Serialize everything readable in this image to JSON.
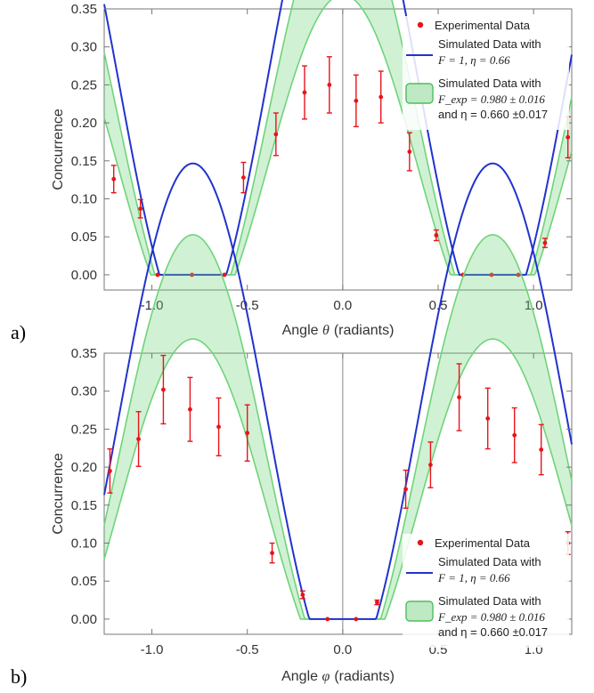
{
  "chart_data": [
    {
      "type": "scatter",
      "panel_label": "a)",
      "xlabel_prefix": "Angle",
      "xlabel_symbol": "θ",
      "xlabel_suffix": "(radiants)",
      "ylabel": "Concurrence",
      "xlim": [
        -1.25,
        1.2
      ],
      "ylim": [
        -0.02,
        0.35
      ],
      "x_ticks": [
        "-1.0",
        "-0.5",
        "0.0",
        "0.5",
        "1.0"
      ],
      "x_tick_values": [
        -1.0,
        -0.5,
        0.0,
        0.5,
        1.0
      ],
      "y_ticks": [
        "0.00",
        "0.05",
        "0.10",
        "0.15",
        "0.20",
        "0.25",
        "0.30",
        "0.35"
      ],
      "y_tick_values": [
        0.0,
        0.05,
        0.1,
        0.15,
        0.2,
        0.25,
        0.3,
        0.35
      ],
      "grid": false,
      "legend_placement": "top-right",
      "model": {
        "mode": "theta",
        "F": 1,
        "eta": 0.66,
        "F_exp": 0.98,
        "F_exp_err": 0.016,
        "eta_err": 0.017
      },
      "series": [
        {
          "name": "Experimental Data",
          "type": "errorbar",
          "color": "#e8141b",
          "x": [
            -1.2,
            -1.06,
            -0.97,
            -0.79,
            -0.62,
            -0.52,
            -0.35,
            -0.2,
            -0.07,
            0.07,
            0.2,
            0.35,
            0.49,
            0.63,
            0.78,
            0.92,
            1.06,
            1.18
          ],
          "y": [
            0.126,
            0.087,
            0.0,
            0.0,
            0.0,
            0.128,
            0.185,
            0.24,
            0.25,
            0.229,
            0.234,
            0.162,
            0.052,
            0.0,
            0.0,
            0.0,
            0.042,
            0.181
          ],
          "err": [
            0.018,
            0.012,
            0.0,
            0.0,
            0.0,
            0.02,
            0.028,
            0.035,
            0.037,
            0.034,
            0.034,
            0.025,
            0.007,
            0.0,
            0.0,
            0.0,
            0.006,
            0.027
          ]
        },
        {
          "name": "Simulated Data with",
          "type": "line",
          "color": "#2233cc"
        },
        {
          "name": "Simulated Data with",
          "type": "band",
          "color": "#6fd47a"
        }
      ],
      "legend": {
        "experimental": "Experimental Data",
        "sim_title": "Simulated Data with",
        "sim_params": "F = 1, η = 0.66",
        "band_title": "Simulated Data with",
        "band_params": "F_exp = 0.980 ± 0.016",
        "band_params_2": "and η = 0.660 ±0.017"
      }
    },
    {
      "type": "scatter",
      "panel_label": "b)",
      "xlabel_prefix": "Angle",
      "xlabel_symbol": "φ",
      "xlabel_suffix": "(radiants)",
      "ylabel": "Concurrence",
      "xlim": [
        -1.25,
        1.2
      ],
      "ylim": [
        -0.02,
        0.35
      ],
      "x_ticks": [
        "-1.0",
        "-0.5",
        "0.0",
        "0.5",
        "1.0"
      ],
      "x_tick_values": [
        -1.0,
        -0.5,
        0.0,
        0.5,
        1.0
      ],
      "y_ticks": [
        "0.00",
        "0.05",
        "0.10",
        "0.15",
        "0.20",
        "0.25",
        "0.30",
        "0.35"
      ],
      "y_tick_values": [
        0.0,
        0.05,
        0.1,
        0.15,
        0.2,
        0.25,
        0.3,
        0.35
      ],
      "grid": false,
      "legend_placement": "bottom-right",
      "model": {
        "mode": "phi",
        "F": 1,
        "eta": 0.66,
        "F_exp": 0.98,
        "F_exp_err": 0.016,
        "eta_err": 0.017
      },
      "series": [
        {
          "name": "Experimental Data",
          "type": "errorbar",
          "color": "#e8141b",
          "x": [
            -1.22,
            -1.07,
            -0.94,
            -0.8,
            -0.65,
            -0.5,
            -0.37,
            -0.21,
            -0.08,
            0.07,
            0.18,
            0.33,
            0.46,
            0.61,
            0.76,
            0.9,
            1.04,
            1.18
          ],
          "y": [
            0.195,
            0.237,
            0.302,
            0.276,
            0.253,
            0.245,
            0.087,
            0.032,
            0.0,
            0.0,
            0.022,
            0.171,
            0.203,
            0.292,
            0.264,
            0.242,
            0.223,
            0.1
          ],
          "err": [
            0.029,
            0.036,
            0.045,
            0.042,
            0.038,
            0.037,
            0.013,
            0.005,
            0.0,
            0.0,
            0.003,
            0.025,
            0.03,
            0.044,
            0.04,
            0.036,
            0.033,
            0.015
          ]
        },
        {
          "name": "Simulated Data with",
          "type": "line",
          "color": "#2233cc"
        },
        {
          "name": "Simulated Data with",
          "type": "band",
          "color": "#6fd47a"
        }
      ],
      "legend": {
        "experimental": "Experimental Data",
        "sim_title": "Simulated Data with",
        "sim_params": "F = 1, η = 0.66",
        "band_title": "Simulated Data with",
        "band_params": "F_exp = 0.980 ± 0.016",
        "band_params_2": "and η = 0.660 ±0.017"
      }
    }
  ]
}
